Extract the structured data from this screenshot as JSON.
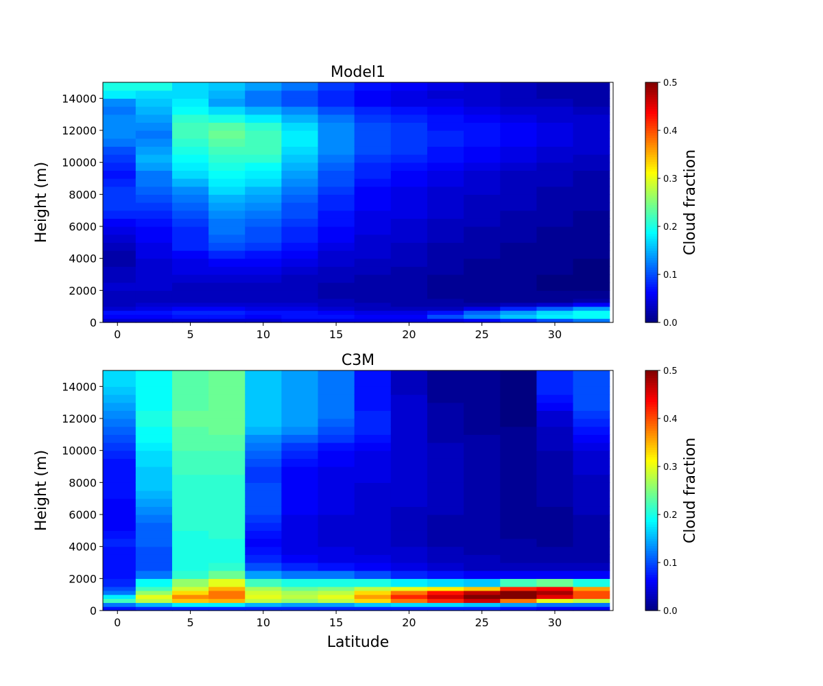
{
  "chart_data": [
    {
      "type": "heatmap",
      "title": "Model1",
      "xlabel": "",
      "ylabel": "Height (m)",
      "colorbar_label": "Cloud fraction",
      "colormap": "jet",
      "xlim": [
        -1,
        34
      ],
      "ylim": [
        0,
        15000
      ],
      "clim": [
        0,
        0.5
      ],
      "xticks": [
        0,
        5,
        10,
        15,
        20,
        25,
        30
      ],
      "yticks": [
        0,
        2000,
        4000,
        6000,
        8000,
        10000,
        12000,
        14000
      ],
      "cticks": [
        0.0,
        0.1,
        0.2,
        0.3,
        0.4,
        0.5
      ],
      "x": [
        0,
        2.5,
        5,
        7.5,
        10,
        12.5,
        15,
        17.5,
        20,
        22.5,
        25,
        27.5,
        30,
        32.5
      ],
      "height_edges": [
        0,
        250,
        500,
        750,
        1000,
        1250,
        1500,
        2000,
        2500,
        3000,
        3500,
        4000,
        4500,
        5000,
        5500,
        6000,
        6500,
        7000,
        7500,
        8000,
        8500,
        9000,
        9500,
        10000,
        10500,
        11000,
        11500,
        12000,
        12500,
        13000,
        13500,
        14000,
        14500,
        15000
      ],
      "z": [
        [
          0.04,
          0.06,
          0.07,
          0.04,
          0.03,
          0.03,
          0.03,
          0.04,
          0.03,
          0.03,
          0.02,
          0.02,
          0.03,
          0.04,
          0.05,
          0.06,
          0.08,
          0.09,
          0.09,
          0.09,
          0.08,
          0.07,
          0.08,
          0.09,
          0.1,
          0.12,
          0.13,
          0.13,
          0.13,
          0.12,
          0.13,
          0.18,
          0.2
        ],
        [
          0.04,
          0.06,
          0.07,
          0.05,
          0.04,
          0.03,
          0.03,
          0.04,
          0.04,
          0.04,
          0.04,
          0.05,
          0.05,
          0.06,
          0.06,
          0.07,
          0.08,
          0.09,
          0.1,
          0.11,
          0.12,
          0.12,
          0.14,
          0.15,
          0.14,
          0.13,
          0.12,
          0.13,
          0.14,
          0.15,
          0.16,
          0.17,
          0.2
        ],
        [
          0.04,
          0.07,
          0.08,
          0.06,
          0.04,
          0.03,
          0.03,
          0.03,
          0.04,
          0.05,
          0.05,
          0.06,
          0.08,
          0.08,
          0.08,
          0.09,
          0.1,
          0.11,
          0.12,
          0.13,
          0.15,
          0.17,
          0.18,
          0.19,
          0.2,
          0.21,
          0.22,
          0.22,
          0.21,
          0.19,
          0.18,
          0.17,
          0.17
        ],
        [
          0.04,
          0.07,
          0.08,
          0.06,
          0.04,
          0.03,
          0.03,
          0.03,
          0.04,
          0.05,
          0.06,
          0.08,
          0.1,
          0.11,
          0.12,
          0.12,
          0.13,
          0.14,
          0.15,
          0.17,
          0.18,
          0.19,
          0.2,
          0.21,
          0.22,
          0.23,
          0.24,
          0.23,
          0.2,
          0.17,
          0.14,
          0.15,
          0.16
        ],
        [
          0.04,
          0.06,
          0.07,
          0.05,
          0.04,
          0.03,
          0.03,
          0.03,
          0.04,
          0.05,
          0.06,
          0.07,
          0.09,
          0.1,
          0.1,
          0.11,
          0.12,
          0.13,
          0.14,
          0.15,
          0.17,
          0.18,
          0.19,
          0.21,
          0.22,
          0.22,
          0.22,
          0.21,
          0.18,
          0.15,
          0.12,
          0.12,
          0.14
        ],
        [
          0.05,
          0.07,
          0.07,
          0.05,
          0.04,
          0.03,
          0.03,
          0.03,
          0.03,
          0.04,
          0.05,
          0.06,
          0.07,
          0.08,
          0.08,
          0.09,
          0.1,
          0.1,
          0.11,
          0.12,
          0.13,
          0.14,
          0.15,
          0.16,
          0.17,
          0.18,
          0.18,
          0.17,
          0.15,
          0.13,
          0.1,
          0.1,
          0.12
        ],
        [
          0.05,
          0.07,
          0.06,
          0.04,
          0.03,
          0.03,
          0.02,
          0.02,
          0.03,
          0.03,
          0.04,
          0.04,
          0.05,
          0.06,
          0.06,
          0.07,
          0.07,
          0.08,
          0.08,
          0.09,
          0.1,
          0.1,
          0.11,
          0.12,
          0.13,
          0.13,
          0.13,
          0.13,
          0.12,
          0.1,
          0.08,
          0.08,
          0.09
        ],
        [
          0.05,
          0.06,
          0.05,
          0.03,
          0.03,
          0.02,
          0.02,
          0.02,
          0.02,
          0.03,
          0.03,
          0.04,
          0.04,
          0.04,
          0.05,
          0.05,
          0.05,
          0.06,
          0.06,
          0.06,
          0.07,
          0.08,
          0.08,
          0.09,
          0.1,
          0.1,
          0.1,
          0.1,
          0.09,
          0.08,
          0.06,
          0.06,
          0.07
        ],
        [
          0.05,
          0.06,
          0.05,
          0.03,
          0.02,
          0.02,
          0.02,
          0.02,
          0.02,
          0.02,
          0.03,
          0.03,
          0.03,
          0.04,
          0.04,
          0.04,
          0.05,
          0.05,
          0.05,
          0.05,
          0.06,
          0.06,
          0.07,
          0.08,
          0.09,
          0.09,
          0.09,
          0.09,
          0.08,
          0.07,
          0.05,
          0.05,
          0.06
        ],
        [
          0.05,
          0.1,
          0.07,
          0.03,
          0.02,
          0.02,
          0.01,
          0.01,
          0.01,
          0.02,
          0.02,
          0.02,
          0.02,
          0.03,
          0.03,
          0.03,
          0.04,
          0.04,
          0.04,
          0.04,
          0.05,
          0.05,
          0.06,
          0.07,
          0.07,
          0.08,
          0.08,
          0.07,
          0.07,
          0.06,
          0.05,
          0.04,
          0.05
        ],
        [
          0.06,
          0.13,
          0.11,
          0.05,
          0.02,
          0.01,
          0.01,
          0.01,
          0.01,
          0.01,
          0.01,
          0.02,
          0.02,
          0.02,
          0.02,
          0.03,
          0.03,
          0.03,
          0.03,
          0.04,
          0.04,
          0.04,
          0.05,
          0.06,
          0.06,
          0.07,
          0.07,
          0.07,
          0.06,
          0.05,
          0.04,
          0.04,
          0.04
        ],
        [
          0.08,
          0.16,
          0.14,
          0.08,
          0.03,
          0.01,
          0.01,
          0.01,
          0.01,
          0.01,
          0.01,
          0.01,
          0.01,
          0.02,
          0.02,
          0.02,
          0.02,
          0.03,
          0.03,
          0.03,
          0.03,
          0.03,
          0.04,
          0.05,
          0.05,
          0.06,
          0.06,
          0.06,
          0.05,
          0.04,
          0.03,
          0.03,
          0.03
        ],
        [
          0.1,
          0.18,
          0.17,
          0.11,
          0.04,
          0.01,
          0.01,
          0.0,
          0.0,
          0.01,
          0.01,
          0.01,
          0.01,
          0.01,
          0.01,
          0.02,
          0.02,
          0.02,
          0.02,
          0.02,
          0.03,
          0.03,
          0.03,
          0.04,
          0.04,
          0.05,
          0.05,
          0.05,
          0.04,
          0.04,
          0.03,
          0.02,
          0.02
        ],
        [
          0.12,
          0.19,
          0.19,
          0.14,
          0.06,
          0.02,
          0.01,
          0.0,
          0.0,
          0.0,
          0.0,
          0.01,
          0.01,
          0.01,
          0.01,
          0.01,
          0.01,
          0.02,
          0.02,
          0.02,
          0.02,
          0.02,
          0.03,
          0.03,
          0.04,
          0.04,
          0.04,
          0.04,
          0.04,
          0.03,
          0.02,
          0.02,
          0.02
        ]
      ]
    },
    {
      "type": "heatmap",
      "title": "C3M",
      "xlabel": "Latitude",
      "ylabel": "Height (m)",
      "colorbar_label": "Cloud fraction",
      "colormap": "jet",
      "xlim": [
        -1,
        34
      ],
      "ylim": [
        0,
        15000
      ],
      "clim": [
        0,
        0.5
      ],
      "xticks": [
        0,
        5,
        10,
        15,
        20,
        25,
        30
      ],
      "yticks": [
        0,
        2000,
        4000,
        6000,
        8000,
        10000,
        12000,
        14000
      ],
      "cticks": [
        0.0,
        0.1,
        0.2,
        0.3,
        0.4,
        0.5
      ],
      "x": [
        0,
        2.5,
        5,
        7.5,
        10,
        12.5,
        15,
        17.5,
        20,
        22.5,
        25,
        27.5,
        30,
        32.5
      ],
      "height_edges": [
        0,
        250,
        500,
        750,
        1000,
        1250,
        1500,
        2000,
        2500,
        3000,
        3500,
        4000,
        4500,
        5000,
        5500,
        6000,
        6500,
        7000,
        7500,
        8000,
        8500,
        9000,
        9500,
        10000,
        10500,
        11000,
        11500,
        12000,
        12500,
        13000,
        13500,
        14000,
        14500,
        15000
      ],
      "z": [
        [
          0.07,
          0.12,
          0.22,
          0.18,
          0.12,
          0.1,
          0.08,
          0.07,
          0.07,
          0.07,
          0.07,
          0.08,
          0.07,
          0.06,
          0.06,
          0.06,
          0.06,
          0.07,
          0.07,
          0.07,
          0.07,
          0.07,
          0.08,
          0.09,
          0.1,
          0.11,
          0.12,
          0.13,
          0.14,
          0.15,
          0.16,
          0.17,
          0.17
        ],
        [
          0.08,
          0.15,
          0.28,
          0.3,
          0.26,
          0.22,
          0.19,
          0.12,
          0.1,
          0.1,
          0.1,
          0.11,
          0.11,
          0.11,
          0.12,
          0.13,
          0.14,
          0.15,
          0.16,
          0.16,
          0.16,
          0.17,
          0.17,
          0.18,
          0.19,
          0.19,
          0.2,
          0.2,
          0.19,
          0.19,
          0.19,
          0.19,
          0.19
        ],
        [
          0.08,
          0.18,
          0.34,
          0.37,
          0.33,
          0.29,
          0.26,
          0.21,
          0.2,
          0.2,
          0.2,
          0.2,
          0.2,
          0.21,
          0.21,
          0.21,
          0.21,
          0.21,
          0.21,
          0.21,
          0.22,
          0.22,
          0.22,
          0.23,
          0.23,
          0.23,
          0.24,
          0.24,
          0.23,
          0.23,
          0.23,
          0.23,
          0.23
        ],
        [
          0.08,
          0.18,
          0.35,
          0.38,
          0.38,
          0.35,
          0.3,
          0.24,
          0.21,
          0.2,
          0.2,
          0.2,
          0.21,
          0.21,
          0.21,
          0.21,
          0.21,
          0.21,
          0.21,
          0.21,
          0.22,
          0.22,
          0.22,
          0.23,
          0.23,
          0.24,
          0.24,
          0.24,
          0.24,
          0.24,
          0.24,
          0.24,
          0.24
        ],
        [
          0.08,
          0.15,
          0.28,
          0.3,
          0.29,
          0.27,
          0.22,
          0.14,
          0.1,
          0.08,
          0.07,
          0.06,
          0.07,
          0.08,
          0.09,
          0.1,
          0.1,
          0.1,
          0.1,
          0.09,
          0.09,
          0.1,
          0.11,
          0.12,
          0.13,
          0.15,
          0.16,
          0.16,
          0.16,
          0.16,
          0.16,
          0.16,
          0.16
        ],
        [
          0.08,
          0.14,
          0.26,
          0.28,
          0.27,
          0.24,
          0.2,
          0.12,
          0.08,
          0.06,
          0.05,
          0.05,
          0.05,
          0.05,
          0.05,
          0.06,
          0.06,
          0.06,
          0.06,
          0.06,
          0.06,
          0.07,
          0.08,
          0.09,
          0.11,
          0.13,
          0.14,
          0.14,
          0.14,
          0.14,
          0.14,
          0.14,
          0.14
        ],
        [
          0.08,
          0.14,
          0.28,
          0.3,
          0.28,
          0.25,
          0.2,
          0.12,
          0.07,
          0.05,
          0.05,
          0.04,
          0.04,
          0.04,
          0.04,
          0.05,
          0.05,
          0.05,
          0.05,
          0.05,
          0.05,
          0.06,
          0.06,
          0.07,
          0.09,
          0.1,
          0.11,
          0.12,
          0.12,
          0.12,
          0.12,
          0.12,
          0.12
        ],
        [
          0.08,
          0.16,
          0.33,
          0.36,
          0.33,
          0.28,
          0.2,
          0.1,
          0.06,
          0.05,
          0.04,
          0.04,
          0.04,
          0.04,
          0.04,
          0.04,
          0.04,
          0.04,
          0.04,
          0.05,
          0.05,
          0.05,
          0.05,
          0.06,
          0.07,
          0.08,
          0.08,
          0.08,
          0.07,
          0.07,
          0.07,
          0.07,
          0.07
        ],
        [
          0.08,
          0.17,
          0.38,
          0.42,
          0.38,
          0.3,
          0.18,
          0.08,
          0.05,
          0.04,
          0.04,
          0.03,
          0.03,
          0.03,
          0.03,
          0.03,
          0.04,
          0.04,
          0.04,
          0.04,
          0.04,
          0.04,
          0.04,
          0.04,
          0.04,
          0.04,
          0.04,
          0.04,
          0.04,
          0.04,
          0.03,
          0.03,
          0.03
        ],
        [
          0.08,
          0.17,
          0.42,
          0.46,
          0.43,
          0.32,
          0.17,
          0.07,
          0.04,
          0.03,
          0.03,
          0.02,
          0.02,
          0.02,
          0.02,
          0.03,
          0.03,
          0.03,
          0.03,
          0.03,
          0.03,
          0.03,
          0.03,
          0.03,
          0.02,
          0.02,
          0.02,
          0.02,
          0.02,
          0.01,
          0.01,
          0.01,
          0.01
        ],
        [
          0.08,
          0.16,
          0.46,
          0.5,
          0.47,
          0.34,
          0.16,
          0.06,
          0.03,
          0.03,
          0.02,
          0.02,
          0.02,
          0.02,
          0.02,
          0.02,
          0.02,
          0.02,
          0.02,
          0.02,
          0.02,
          0.02,
          0.02,
          0.02,
          0.02,
          0.01,
          0.01,
          0.01,
          0.01,
          0.01,
          0.01,
          0.01,
          0.01
        ],
        [
          0.07,
          0.14,
          0.38,
          0.5,
          0.5,
          0.42,
          0.22,
          0.06,
          0.03,
          0.02,
          0.02,
          0.02,
          0.01,
          0.01,
          0.01,
          0.01,
          0.01,
          0.01,
          0.01,
          0.01,
          0.01,
          0.01,
          0.01,
          0.01,
          0.01,
          0.01,
          0.0,
          0.0,
          0.0,
          0.0,
          0.0,
          0.0,
          0.0
        ],
        [
          0.06,
          0.12,
          0.3,
          0.45,
          0.48,
          0.44,
          0.24,
          0.06,
          0.03,
          0.02,
          0.02,
          0.01,
          0.01,
          0.01,
          0.01,
          0.01,
          0.02,
          0.02,
          0.02,
          0.02,
          0.02,
          0.02,
          0.02,
          0.03,
          0.03,
          0.03,
          0.04,
          0.04,
          0.06,
          0.07,
          0.08,
          0.08,
          0.08
        ],
        [
          0.06,
          0.12,
          0.28,
          0.4,
          0.4,
          0.36,
          0.2,
          0.06,
          0.03,
          0.02,
          0.02,
          0.02,
          0.02,
          0.02,
          0.02,
          0.03,
          0.03,
          0.03,
          0.03,
          0.03,
          0.04,
          0.04,
          0.04,
          0.05,
          0.06,
          0.07,
          0.08,
          0.09,
          0.1,
          0.1,
          0.1,
          0.1,
          0.1
        ]
      ]
    }
  ]
}
